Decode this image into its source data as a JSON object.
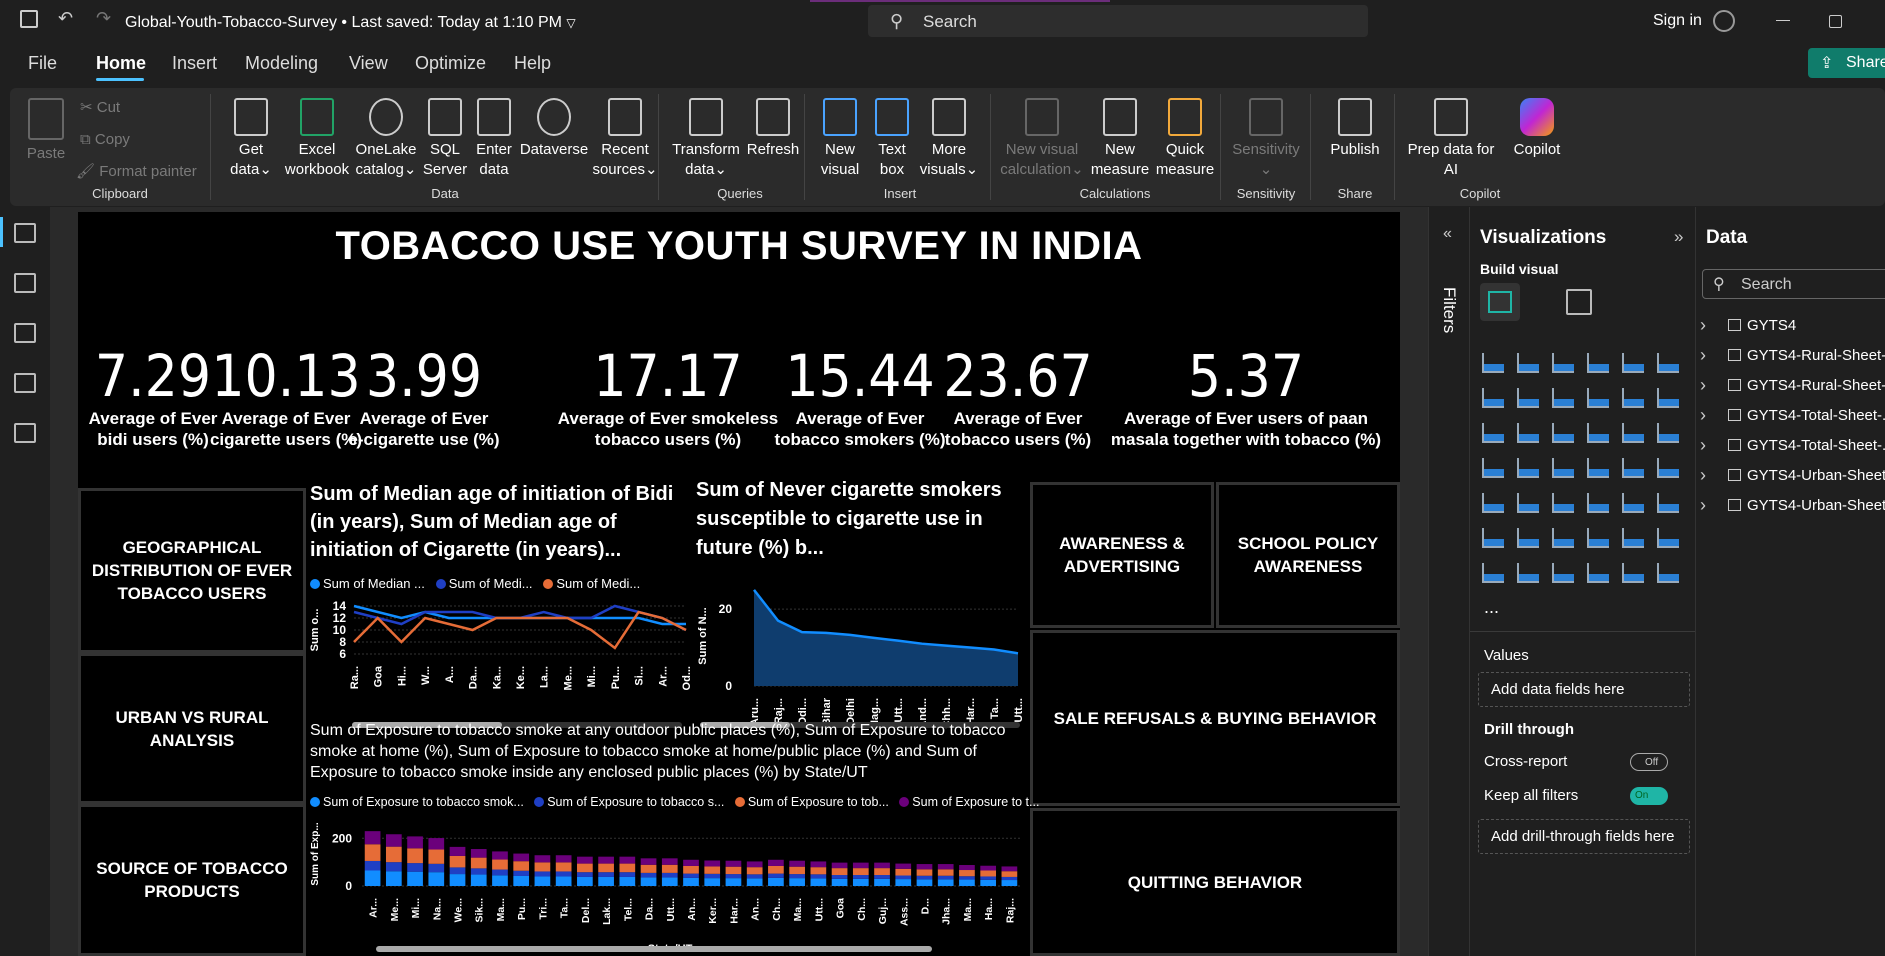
{
  "titlebar": {
    "doc_title": "Global-Youth-Tobacco-Survey",
    "saved": "Last saved: Today at 1:10 PM",
    "search_label": "Search",
    "sign_in": "Sign in"
  },
  "menu": [
    "File",
    "Home",
    "Insert",
    "Modeling",
    "View",
    "Optimize",
    "Help"
  ],
  "share_label": "Share",
  "ribbon": {
    "clipboard": {
      "paste": "Paste",
      "cut": "Cut",
      "copy": "Copy",
      "format_painter": "Format painter",
      "group": "Clipboard"
    },
    "data": {
      "group": "Data",
      "items": [
        {
          "l1": "Get",
          "l2": "data"
        },
        {
          "l1": "Excel",
          "l2": "workbook"
        },
        {
          "l1": "OneLake",
          "l2": "catalog"
        },
        {
          "l1": "SQL",
          "l2": "Server"
        },
        {
          "l1": "Enter",
          "l2": "data"
        },
        {
          "l1": "Dataverse",
          "l2": ""
        },
        {
          "l1": "Recent",
          "l2": "sources"
        }
      ]
    },
    "queries": {
      "group": "Queries",
      "transform_l1": "Transform",
      "transform_l2": "data",
      "refresh": "Refresh"
    },
    "insert": {
      "group": "Insert",
      "items": [
        {
          "l1": "New",
          "l2": "visual"
        },
        {
          "l1": "Text",
          "l2": "box"
        },
        {
          "l1": "More",
          "l2": "visuals"
        }
      ]
    },
    "calculations": {
      "group": "Calculations",
      "items": [
        {
          "l1": "New visual",
          "l2": "calculation"
        },
        {
          "l1": "New",
          "l2": "measure"
        },
        {
          "l1": "Quick",
          "l2": "measure"
        }
      ]
    },
    "sensitivity": {
      "group": "Sensitivity",
      "l1": "Sensitivity"
    },
    "share": {
      "group": "Share",
      "l1": "Publish"
    },
    "copilot": {
      "group": "Copilot",
      "prep_l1": "Prep data for",
      "prep_l2": "AI",
      "copilot": "Copilot"
    }
  },
  "report": {
    "title": "TOBACCO USE YOUTH SURVEY IN INDIA",
    "kpis": [
      {
        "value": "7.29",
        "l1": "Average of Ever",
        "l2": "bidi users (%)"
      },
      {
        "value": "10.13",
        "l1": "Average of Ever",
        "l2": "cigarette users (%)"
      },
      {
        "value": "3.99",
        "l1": "Average of Ever",
        "l2": "e-cigarette use (%)"
      },
      {
        "value": "17.17",
        "l1": "Average of Ever smokeless",
        "l2": "tobacco users (%)"
      },
      {
        "value": "15.44",
        "l1": "Average of Ever",
        "l2": "tobacco smokers (%)"
      },
      {
        "value": "23.67",
        "l1": "Average of Ever",
        "l2": "tobacco users (%)"
      },
      {
        "value": "5.37",
        "l1": "Average of Ever users of  paan",
        "l2": "masala together with tobacco (%)"
      }
    ],
    "buttons": {
      "geo": "GEOGRAPHICAL DISTRIBUTION OF EVER TOBACCO USERS",
      "urban": "URBAN VS RURAL ANALYSIS",
      "source": "SOURCE OF TOBACCO PRODUCTS",
      "awareness": "AWARENESS & ADVERTISING",
      "school": "SCHOOL POLICY AWARENESS",
      "sale": "SALE REFUSALS & BUYING BEHAVIOR",
      "quitting": "QUITTING BEHAVIOR"
    }
  },
  "chart_data": [
    {
      "type": "line",
      "title": "Sum of Median age of initiation of Bidi (in years), Sum of Median age of initiation of Cigarette (in years)...",
      "ylabel": "Sum o...",
      "ylim": [
        6,
        14
      ],
      "yticks": [
        6,
        8,
        10,
        12,
        14
      ],
      "categories": [
        "Ra...",
        "Goa",
        "Hi...",
        "W...",
        "A...",
        "Da...",
        "Ka...",
        "Ke...",
        "La...",
        "Me...",
        "Mi...",
        "Pu...",
        "Si...",
        "Ar...",
        "Od..."
      ],
      "legend": [
        "Sum of Median ...",
        "Sum of Medi...",
        "Sum of Medi..."
      ],
      "series": [
        {
          "name": "Sum of Median ...",
          "color": "#118dff",
          "values": [
            14,
            13,
            12,
            13,
            12,
            12,
            12,
            12,
            12,
            12,
            12,
            12,
            12,
            11,
            11
          ]
        },
        {
          "name": "Sum of Medi...",
          "color": "#1f3fc4",
          "values": [
            13,
            12,
            11,
            13,
            13,
            13,
            12,
            12,
            13,
            12,
            12,
            14,
            13,
            12,
            10
          ]
        },
        {
          "name": "Sum of Medi...",
          "color": "#e66c37",
          "values": [
            8,
            12,
            8,
            12,
            11,
            10,
            12,
            12,
            12,
            12,
            10,
            7,
            13,
            12,
            10
          ]
        }
      ]
    },
    {
      "type": "area",
      "title": "Sum of Never cigarette smokers susceptible to cigarette use in future (%) b...",
      "ylabel": "Sum of N...",
      "ylim": [
        0,
        26
      ],
      "yticks": [
        0,
        20
      ],
      "categories": [
        "Aru...",
        "Raj...",
        "Odi...",
        "Bihar",
        "Delhi",
        "Nag...",
        "Utt...",
        "And...",
        "Chh...",
        "Har...",
        "Ta...",
        "Utt..."
      ],
      "series": [
        {
          "color": "#118dff",
          "values": [
            25,
            17,
            14,
            13.8,
            13.3,
            12.5,
            11.8,
            11,
            10.5,
            10,
            9.5,
            8.5
          ]
        }
      ]
    },
    {
      "type": "bar",
      "stacked": true,
      "title": "Sum of Exposure to tobacco smoke at any outdoor public places (%), Sum of Exposure to tobacco smoke at home (%), Sum of Exposure to tobacco smoke at home/public place (%) and Sum of Exposure to tobacco smoke inside any enclosed public places (%) by State/UT",
      "xlabel": "State/UT",
      "ylabel": "Sum of Exp...",
      "ylim": [
        0,
        260
      ],
      "yticks": [
        0,
        200
      ],
      "legend": [
        "Sum of Exposure to tobacco smok...",
        "Sum of Exposure to tobacco s...",
        "Sum of Exposure to tob...",
        "Sum of Exposure to t..."
      ],
      "categories": [
        "Ar...",
        "Me...",
        "Mi...",
        "Na...",
        "We...",
        "Sik...",
        "Ma...",
        "Pu...",
        "Tri...",
        "Ta...",
        "Del...",
        "Lak...",
        "Tel...",
        "Da...",
        "Utt...",
        "An...",
        "Ker...",
        "Har...",
        "An...",
        "Ch...",
        "Ma...",
        "Utt...",
        "Goa",
        "Ch...",
        "Guj...",
        "Ass...",
        "D...",
        "Jha...",
        "Ma...",
        "Ha...",
        "Raj..."
      ],
      "series": [
        {
          "name": "Sum of Exposure to tobacco smok...",
          "color": "#118dff",
          "values": [
            65,
            62,
            60,
            58,
            50,
            48,
            45,
            42,
            40,
            40,
            38,
            38,
            38,
            36,
            36,
            34,
            33,
            33,
            32,
            34,
            33,
            32,
            30,
            30,
            30,
            29,
            28,
            28,
            27,
            26,
            25
          ]
        },
        {
          "name": "Sum of Exposure to tobacco s...",
          "color": "#1f3fc4",
          "values": [
            40,
            38,
            36,
            35,
            28,
            26,
            24,
            22,
            21,
            21,
            20,
            20,
            20,
            19,
            19,
            18,
            18,
            17,
            17,
            18,
            17,
            17,
            16,
            16,
            16,
            15,
            15,
            15,
            14,
            14,
            13
          ]
        },
        {
          "name": "Sum of Exposure to tob...",
          "color": "#e66c37",
          "values": [
            70,
            65,
            62,
            60,
            48,
            45,
            42,
            40,
            38,
            38,
            36,
            36,
            36,
            34,
            34,
            32,
            31,
            31,
            30,
            32,
            31,
            30,
            29,
            29,
            29,
            28,
            27,
            27,
            26,
            25,
            24
          ]
        },
        {
          "name": "Sum of Exposure to t...",
          "color": "#6b007b",
          "values": [
            55,
            52,
            50,
            48,
            38,
            36,
            34,
            32,
            30,
            30,
            29,
            29,
            29,
            27,
            27,
            26,
            25,
            25,
            24,
            26,
            25,
            24,
            23,
            23,
            23,
            22,
            22,
            22,
            21,
            20,
            20
          ]
        }
      ]
    }
  ],
  "filters_label": "Filters",
  "viz_pane": {
    "title": "Visualizations",
    "build": "Build visual",
    "more": "...",
    "values": "Values",
    "add_fields": "Add data fields here",
    "drill": "Drill through",
    "cross_report": "Cross-report",
    "cross_state": "Off",
    "keep_filters": "Keep all filters",
    "keep_state": "On",
    "add_drill": "Add drill-through fields here"
  },
  "data_pane": {
    "title": "Data",
    "search": "Search",
    "tables": [
      "GYTS4",
      "GYTS4-Rural-Sheet-...",
      "GYTS4-Rural-Sheet-...",
      "GYTS4-Total-Sheet-...",
      "GYTS4-Total-Sheet-...",
      "GYTS4-Urban-Sheet...",
      "GYTS4-Urban-Sheet..."
    ]
  }
}
